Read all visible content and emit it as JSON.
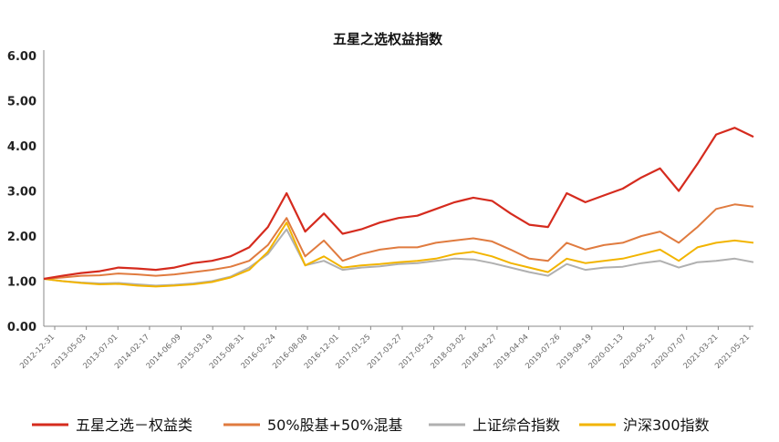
{
  "chart_data": {
    "type": "line",
    "title": "五星之选权益指数",
    "xlabel": "",
    "ylabel": "",
    "ylim": [
      0,
      6
    ],
    "y_ticks": [
      "0.00",
      "1.00",
      "2.00",
      "3.00",
      "4.00",
      "5.00",
      "6.00"
    ],
    "x_ticks": [
      "2012-12-31",
      "2013-05-03",
      "2013-07-01",
      "2014-02-17",
      "2014-06-09",
      "2015-03-19",
      "2015-08-31",
      "2016-02-24",
      "2016-08-08",
      "2016-12-01",
      "2017-01-25",
      "2017-03-27",
      "2017-05-23",
      "2018-03-02",
      "2018-04-27",
      "2019-04-04",
      "2019-07-26",
      "2019-09-19",
      "2020-01-13",
      "2020-05-12",
      "2020-07-07",
      "2021-03-21",
      "2021-05-21"
    ],
    "grid": false,
    "legend_position": "bottom",
    "series": [
      {
        "name": "五星之选－权益类",
        "color": "#d52b1e",
        "values": [
          1.05,
          1.12,
          1.18,
          1.22,
          1.3,
          1.28,
          1.25,
          1.3,
          1.4,
          1.45,
          1.55,
          1.75,
          2.2,
          2.95,
          2.1,
          2.5,
          2.05,
          2.15,
          2.3,
          2.4,
          2.45,
          2.6,
          2.75,
          2.85,
          2.78,
          2.5,
          2.25,
          2.2,
          2.95,
          2.75,
          2.9,
          3.05,
          3.3,
          3.5,
          3.0,
          3.6,
          4.25,
          4.4,
          4.2
        ]
      },
      {
        "name": "50%股基+50%混基",
        "color": "#e07b3f",
        "values": [
          1.05,
          1.08,
          1.12,
          1.13,
          1.17,
          1.15,
          1.12,
          1.15,
          1.2,
          1.25,
          1.32,
          1.45,
          1.8,
          2.4,
          1.55,
          1.9,
          1.45,
          1.6,
          1.7,
          1.75,
          1.75,
          1.85,
          1.9,
          1.95,
          1.88,
          1.7,
          1.5,
          1.45,
          1.85,
          1.7,
          1.8,
          1.85,
          2.0,
          2.1,
          1.85,
          2.2,
          2.6,
          2.7,
          2.65
        ]
      },
      {
        "name": "上证综合指数",
        "color": "#b0b0b0",
        "values": [
          1.05,
          1.0,
          0.97,
          0.95,
          0.96,
          0.93,
          0.9,
          0.92,
          0.95,
          1.0,
          1.1,
          1.3,
          1.6,
          2.15,
          1.35,
          1.45,
          1.25,
          1.3,
          1.33,
          1.38,
          1.4,
          1.45,
          1.5,
          1.48,
          1.4,
          1.3,
          1.2,
          1.12,
          1.38,
          1.25,
          1.3,
          1.32,
          1.4,
          1.45,
          1.3,
          1.42,
          1.45,
          1.5,
          1.42
        ]
      },
      {
        "name": "沪深300指数",
        "color": "#f2b400",
        "values": [
          1.05,
          1.0,
          0.96,
          0.93,
          0.94,
          0.9,
          0.88,
          0.9,
          0.93,
          0.98,
          1.08,
          1.25,
          1.65,
          2.3,
          1.35,
          1.55,
          1.3,
          1.35,
          1.38,
          1.42,
          1.45,
          1.5,
          1.6,
          1.65,
          1.55,
          1.4,
          1.3,
          1.2,
          1.5,
          1.4,
          1.45,
          1.5,
          1.6,
          1.7,
          1.45,
          1.75,
          1.85,
          1.9,
          1.85
        ]
      }
    ]
  }
}
